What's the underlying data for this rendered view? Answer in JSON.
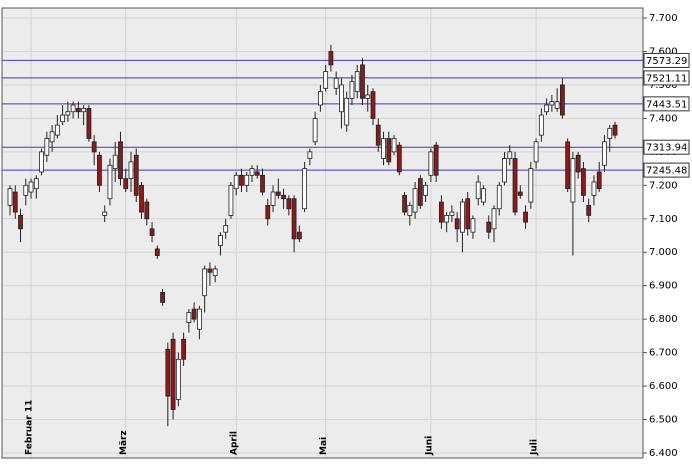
{
  "chart_data": {
    "type": "candlestick",
    "categories": [
      null,
      null,
      null,
      null,
      "Februar 11",
      null,
      null,
      null,
      null,
      null,
      null,
      null,
      null,
      null,
      null,
      null,
      null,
      null,
      null,
      null,
      null,
      null,
      "März",
      null,
      null,
      null,
      null,
      null,
      null,
      null,
      null,
      null,
      null,
      null,
      null,
      null,
      null,
      null,
      null,
      null,
      null,
      null,
      null,
      "April",
      null,
      null,
      null,
      null,
      null,
      null,
      null,
      null,
      null,
      null,
      null,
      null,
      null,
      null,
      null,
      null,
      "Mai",
      null,
      null,
      null,
      null,
      null,
      null,
      null,
      null,
      null,
      null,
      null,
      null,
      null,
      null,
      null,
      null,
      null,
      null,
      null,
      "Juni",
      null,
      null,
      null,
      null,
      null,
      null,
      null,
      null,
      null,
      null,
      null,
      null,
      null,
      null,
      null,
      null,
      null,
      null,
      null,
      "Juli",
      null,
      null,
      null,
      null,
      null,
      null,
      null,
      null,
      null,
      null,
      null,
      null,
      null,
      null,
      null
    ],
    "open": [
      7140,
      7180,
      7110,
      7170,
      7180,
      7190,
      7240,
      7290,
      7330,
      7350,
      7390,
      7410,
      7420,
      7430,
      7420,
      7430,
      7330,
      7290,
      7110,
      7160,
      7250,
      7330,
      7220,
      7220,
      7290,
      7200,
      7150,
      7070,
      7010,
      6880,
      6710,
      6740,
      6560,
      6740,
      6790,
      6830,
      6770,
      6870,
      6950,
      6930,
      7020,
      7060,
      7110,
      7190,
      7230,
      7200,
      7230,
      7240,
      7230,
      7140,
      7140,
      7180,
      7170,
      7160,
      7160,
      7060,
      7130,
      7280,
      7330,
      7440,
      7490,
      7600,
      7490,
      7420,
      7380,
      7460,
      7480,
      7560,
      7460,
      7480,
      7380,
      7280,
      7340,
      7300,
      7320,
      7170,
      7110,
      7120,
      7220,
      7170,
      7230,
      7320,
      7150,
      7090,
      7110,
      7100,
      7060,
      7160,
      7060,
      7160,
      7150,
      7090,
      7070,
      7130,
      7210,
      7280,
      7280,
      7180,
      7120,
      7150,
      7270,
      7350,
      7420,
      7440,
      7430,
      7500,
      7330,
      7150,
      7290,
      7250,
      7140,
      7170,
      7240,
      7260,
      7340,
      7380
    ],
    "high": [
      7200,
      7200,
      7130,
      7220,
      7220,
      7230,
      7310,
      7360,
      7380,
      7410,
      7440,
      7450,
      7450,
      7450,
      7440,
      7440,
      7350,
      7300,
      7140,
      7280,
      7330,
      7360,
      7250,
      7300,
      7310,
      7210,
      7160,
      7090,
      7020,
      6890,
      6730,
      6760,
      6700,
      6760,
      6830,
      6850,
      6840,
      6960,
      6970,
      6960,
      7060,
      7100,
      7210,
      7240,
      7250,
      7240,
      7260,
      7260,
      7250,
      7160,
      7200,
      7220,
      7190,
      7170,
      7170,
      7080,
      7270,
      7310,
      7420,
      7500,
      7560,
      7620,
      7540,
      7520,
      7480,
      7530,
      7560,
      7580,
      7500,
      7490,
      7400,
      7360,
      7360,
      7350,
      7330,
      7180,
      7150,
      7210,
      7230,
      7210,
      7310,
      7330,
      7170,
      7120,
      7140,
      7120,
      7160,
      7180,
      7110,
      7230,
      7200,
      7110,
      7140,
      7210,
      7300,
      7320,
      7300,
      7200,
      7140,
      7270,
      7340,
      7430,
      7460,
      7470,
      7490,
      7520,
      7340,
      7300,
      7300,
      7270,
      7160,
      7230,
      7270,
      7350,
      7380,
      7390
    ],
    "low": [
      7110,
      7100,
      7030,
      7140,
      7160,
      7160,
      7230,
      7270,
      7300,
      7340,
      7380,
      7390,
      7400,
      7400,
      7380,
      7330,
      7260,
      7180,
      7090,
      7140,
      7210,
      7200,
      7180,
      7180,
      7150,
      7100,
      7080,
      7030,
      6980,
      6840,
      6480,
      6500,
      6540,
      6660,
      6760,
      6790,
      6740,
      6820,
      6900,
      6910,
      6990,
      7040,
      7100,
      7170,
      7180,
      7180,
      7210,
      7220,
      7170,
      7080,
      7120,
      7160,
      7130,
      7110,
      7000,
      7030,
      7120,
      7260,
      7320,
      7420,
      7480,
      7540,
      7470,
      7370,
      7360,
      7440,
      7460,
      7440,
      7420,
      7380,
      7300,
      7260,
      7260,
      7290,
      7230,
      7110,
      7080,
      7100,
      7130,
      7150,
      7210,
      7210,
      7070,
      7060,
      7090,
      7030,
      7000,
      7050,
      7040,
      7140,
      7140,
      7040,
      7030,
      7110,
      7200,
      7260,
      7110,
      7160,
      7070,
      7130,
      7250,
      7330,
      7410,
      7420,
      7420,
      7400,
      7180,
      6990,
      7220,
      7150,
      7090,
      7140,
      7180,
      7240,
      7300,
      7340
    ],
    "close": [
      7190,
      7120,
      7070,
      7200,
      7210,
      7220,
      7300,
      7340,
      7360,
      7380,
      7410,
      7420,
      7440,
      7420,
      7430,
      7340,
      7300,
      7200,
      7120,
      7260,
      7290,
      7220,
      7190,
      7270,
      7170,
      7120,
      7100,
      7050,
      6990,
      6850,
      6570,
      6530,
      6680,
      6680,
      6820,
      6800,
      6830,
      6950,
      6940,
      6950,
      7050,
      7080,
      7200,
      7230,
      7200,
      7230,
      7250,
      7230,
      7180,
      7100,
      7180,
      7170,
      7160,
      7130,
      7040,
      7040,
      7250,
      7300,
      7400,
      7480,
      7540,
      7560,
      7520,
      7500,
      7460,
      7510,
      7540,
      7460,
      7470,
      7400,
      7320,
      7340,
      7270,
      7340,
      7240,
      7120,
      7140,
      7190,
      7140,
      7200,
      7300,
      7230,
      7090,
      7110,
      7120,
      7070,
      7150,
      7070,
      7100,
      7210,
      7190,
      7060,
      7130,
      7200,
      7280,
      7300,
      7120,
      7170,
      7090,
      7250,
      7330,
      7410,
      7440,
      7450,
      7450,
      7410,
      7190,
      7280,
      7240,
      7170,
      7110,
      7210,
      7190,
      7330,
      7370,
      7350
    ],
    "up_color": "#ffffff",
    "down_color": "#8b1a1a",
    "levels": [
      7573.29,
      7521.11,
      7443.51,
      7313.94,
      7245.48
    ],
    "level_color": "#3a3ac8",
    "ylim": [
      6385,
      7730
    ],
    "yticks": [
      {
        "value": 6400,
        "label": "6.400"
      },
      {
        "value": 6500,
        "label": "6.500"
      },
      {
        "value": 6600,
        "label": "6.600"
      },
      {
        "value": 6700,
        "label": "6.700"
      },
      {
        "value": 6800,
        "label": "6.800"
      },
      {
        "value": 6900,
        "label": "6.900"
      },
      {
        "value": 7000,
        "label": "7.000"
      },
      {
        "value": 7100,
        "label": "7.100"
      },
      {
        "value": 7200,
        "label": "7.200"
      },
      {
        "value": 7300,
        "label": "7.300"
      },
      {
        "value": 7400,
        "label": "7.400"
      },
      {
        "value": 7500,
        "label": "7.500"
      },
      {
        "value": 7600,
        "label": "7.600"
      },
      {
        "value": 7700,
        "label": "7.700"
      }
    ],
    "grid": true
  }
}
